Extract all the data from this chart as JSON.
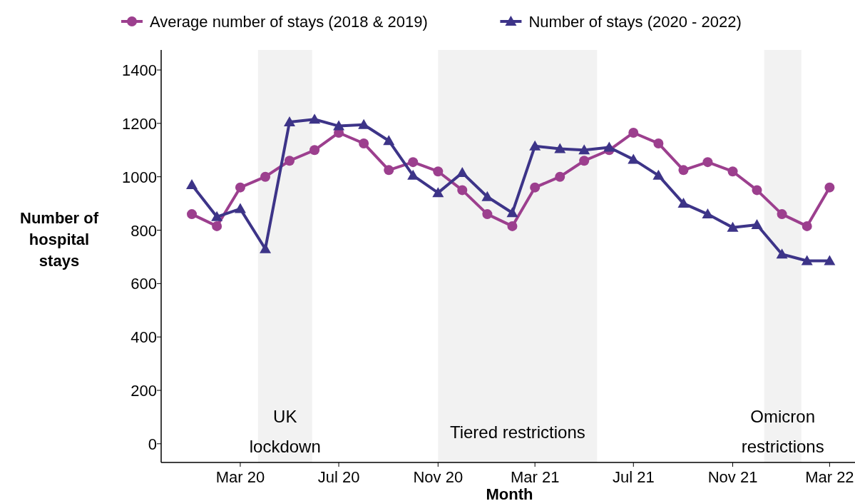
{
  "chart_data": {
    "type": "line",
    "xlabel": "Month",
    "ylabel": "Number of\nhospital\nstays",
    "x": [
      "2020-01",
      "2020-02",
      "2020-03",
      "2020-04",
      "2020-05",
      "2020-06",
      "2020-07",
      "2020-08",
      "2020-09",
      "2020-10",
      "2020-11",
      "2020-12",
      "2021-01",
      "2021-02",
      "2021-03",
      "2021-04",
      "2021-05",
      "2021-06",
      "2021-07",
      "2021-08",
      "2021-09",
      "2021-10",
      "2021-11",
      "2021-12",
      "2022-01",
      "2022-02",
      "2022-03"
    ],
    "series": [
      {
        "name": "Average number of stays (2018 & 2019)",
        "color": "#9c3f8e",
        "marker": "circle",
        "values": [
          860,
          815,
          960,
          1000,
          1060,
          1100,
          1165,
          1125,
          1025,
          1055,
          1020,
          950,
          860,
          815,
          960,
          1000,
          1060,
          1100,
          1165,
          1125,
          1025,
          1055,
          1020,
          950,
          860,
          815,
          960
        ]
      },
      {
        "name": "Number of stays (2020 - 2022)",
        "color": "#3d3488",
        "marker": "triangle",
        "values": [
          970,
          850,
          880,
          730,
          1205,
          1215,
          1190,
          1195,
          1135,
          1005,
          940,
          1015,
          925,
          865,
          1115,
          1105,
          1100,
          1110,
          1065,
          1005,
          900,
          860,
          810,
          820,
          710,
          685,
          685
        ]
      }
    ],
    "xlim": [
      "2019-11-24",
      "2022-04-05"
    ],
    "xticks": [
      {
        "value": "2020-03",
        "label": "Mar 20"
      },
      {
        "value": "2020-07",
        "label": "Jul 20"
      },
      {
        "value": "2020-11",
        "label": "Nov 20"
      },
      {
        "value": "2021-03",
        "label": "Mar 21"
      },
      {
        "value": "2021-07",
        "label": "Jul 21"
      },
      {
        "value": "2021-11",
        "label": "Nov 21"
      },
      {
        "value": "2022-03",
        "label": "Mar 22"
      }
    ],
    "ylim": [
      -70,
      1475
    ],
    "yticks": [
      0,
      200,
      400,
      600,
      800,
      1000,
      1200,
      1400
    ],
    "bands": [
      {
        "axis": "x",
        "from": "2020-03-23",
        "to": "2020-05-29",
        "label": "UK\nlockdown",
        "color": "#f2f2f2"
      },
      {
        "axis": "x",
        "from": "2020-11-01",
        "to": "2021-05-17",
        "label": "Tiered restrictions",
        "color": "#f2f2f2"
      },
      {
        "axis": "x",
        "from": "2021-12-10",
        "to": "2022-01-25",
        "label": "Omicron\nrestrictions",
        "color": "#f2f2f2"
      }
    ],
    "grid": false,
    "legend": "top",
    "line_style": "solid"
  }
}
